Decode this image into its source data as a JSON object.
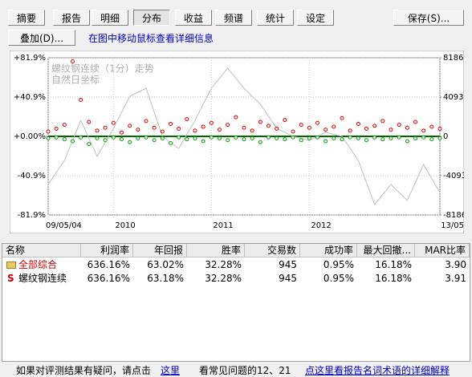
{
  "toolbar": {
    "tabs": [
      "摘要",
      "报告",
      "明细",
      "分布",
      "收益",
      "频谱",
      "统计",
      "设定"
    ],
    "save": "保存(S)..."
  },
  "overlay_button": "叠加(D)...",
  "hint": "在图中移动鼠标查看详细信息",
  "chart_data": {
    "type": "line",
    "title": "螺纹钢连续（1分）走势",
    "subtitle": "自然日坐标",
    "xlim": [
      0,
      48
    ],
    "xticks": [
      {
        "value": 0,
        "label": "09/05/04"
      },
      {
        "value": 8,
        "label": "2010"
      },
      {
        "value": 20,
        "label": "2011"
      },
      {
        "value": 32,
        "label": "2012"
      },
      {
        "value": 48,
        "label": "13/05"
      }
    ],
    "ylim": [
      -81.9,
      81.9
    ],
    "yticks": [
      {
        "value": 81.9,
        "label": "+81.9%"
      },
      {
        "value": 40.9,
        "label": "+40.9%"
      },
      {
        "value": 0,
        "label": "+0.00%"
      },
      {
        "value": -40.9,
        "label": "-40.9%"
      },
      {
        "value": -81.9,
        "label": "-81.9%"
      }
    ],
    "y2lim": [
      -8186,
      8186
    ],
    "y2ticks": [
      8186,
      4093,
      0,
      -4093,
      -8186
    ],
    "grid": true,
    "series": [
      {
        "name": "螺纹钢连续（1分）走势",
        "type": "line",
        "axis": "y2",
        "color": "#c0c0c0",
        "x": [
          0,
          2,
          4,
          6,
          8,
          10,
          12,
          14,
          16,
          18,
          20,
          22,
          24,
          26,
          28,
          30,
          32,
          34,
          36,
          38,
          40,
          42,
          44,
          46,
          48
        ],
        "values": [
          -5012,
          -2506,
          1671,
          -2088,
          835,
          4177,
          5012,
          0,
          -1253,
          1671,
          5012,
          7100,
          5012,
          3341,
          835,
          0,
          -418,
          418,
          0,
          -2506,
          -7100,
          -5012,
          -6682,
          -2924,
          -5847
        ]
      },
      {
        "type": "scatter",
        "color": "#e00000",
        "x": [
          0,
          1,
          2,
          3,
          4,
          5,
          6,
          7,
          8,
          9,
          10,
          11,
          12,
          13,
          14,
          15,
          16,
          17,
          18,
          19,
          20,
          21,
          22,
          23,
          24,
          25,
          26,
          27,
          28,
          29,
          30,
          31,
          32,
          33,
          34,
          35,
          36,
          37,
          38,
          39,
          40,
          41,
          42,
          43,
          44,
          45,
          46,
          47,
          48
        ],
        "values": [
          5,
          8,
          12,
          78,
          38,
          15,
          6,
          9,
          14,
          4,
          11,
          7,
          16,
          9,
          5,
          13,
          8,
          18,
          6,
          10,
          14,
          7,
          12,
          20,
          9,
          6,
          15,
          11,
          8,
          17,
          5,
          12,
          9,
          14,
          7,
          10,
          19,
          6,
          13,
          8,
          11,
          16,
          7,
          12,
          9,
          15,
          6,
          10,
          8
        ]
      },
      {
        "type": "scatter",
        "color": "#00a000",
        "x": [
          0,
          1,
          2,
          3,
          4,
          5,
          6,
          7,
          8,
          9,
          10,
          11,
          12,
          13,
          14,
          15,
          16,
          17,
          18,
          19,
          20,
          21,
          22,
          23,
          24,
          25,
          26,
          27,
          28,
          29,
          30,
          31,
          32,
          33,
          34,
          35,
          36,
          37,
          38,
          39,
          40,
          41,
          42,
          43,
          44,
          45,
          46,
          47,
          48
        ],
        "values": [
          -2,
          -1,
          -3,
          -5,
          -1,
          -8,
          -2,
          -4,
          -1,
          -3,
          -6,
          -2,
          -1,
          -4,
          -2,
          -7,
          -1,
          -3,
          -2,
          -5,
          -1,
          -2,
          -4,
          -1,
          -3,
          -2,
          -6,
          -1,
          -2,
          -3,
          -1,
          -4,
          -2,
          -1,
          -5,
          -2,
          -3,
          -1,
          -2,
          -4,
          -1,
          -3,
          -2,
          -1,
          -5,
          -2,
          -1,
          -3,
          -2
        ]
      }
    ]
  },
  "table": {
    "columns": [
      "名称",
      "利润率",
      "年回报",
      "胜率",
      "交易数",
      "成功率",
      "最大回撤...",
      "MAR比率"
    ],
    "rows": [
      {
        "cells": [
          "全部综合",
          "636.16%",
          "63.02%",
          "32.28%",
          "945",
          "0.95%",
          "16.18%",
          "3.90"
        ]
      },
      {
        "icon": "S",
        "cells": [
          "螺纹钢连续",
          "636.16%",
          "63.18%",
          "32.28%",
          "945",
          "0.95%",
          "16.18%",
          "3.91"
        ]
      }
    ]
  },
  "footer": {
    "text": "如果对评测结果有疑问，请点击",
    "link1": "这里",
    "faq": "看常见问题的12、21",
    "link2": "点这里看报告名词术语的详细解释"
  }
}
